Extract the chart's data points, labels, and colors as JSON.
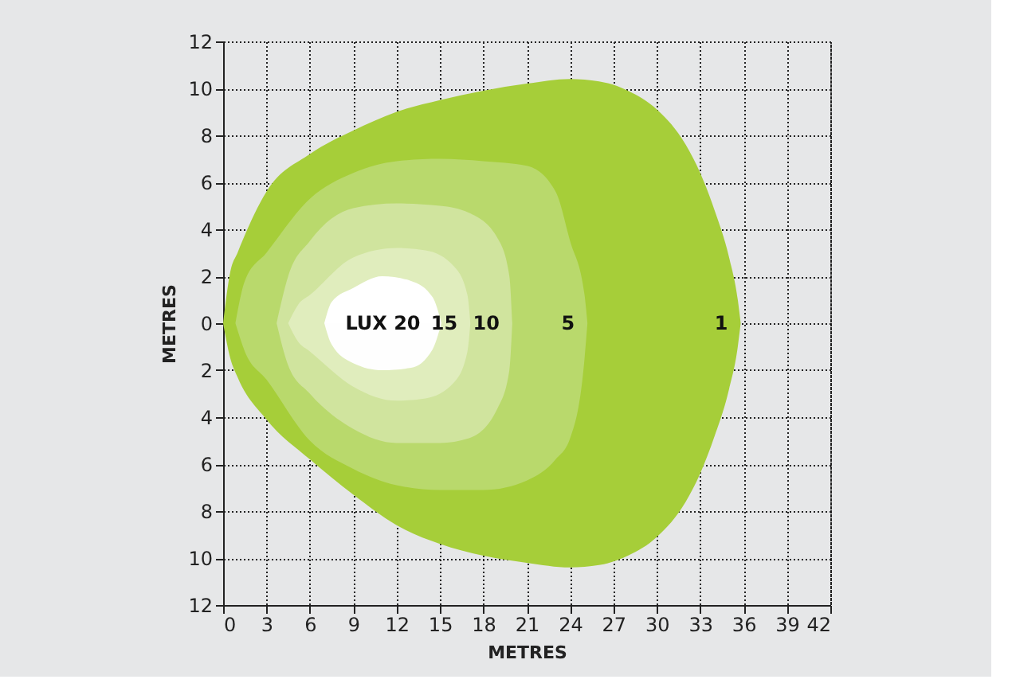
{
  "chart_data": {
    "type": "area",
    "xlabel": "METRES",
    "ylabel": "METRES",
    "series": [
      {
        "name": "1",
        "color": "#a6ce39",
        "x": [
          0,
          0.5,
          1,
          3,
          6,
          9,
          12,
          15,
          18,
          21,
          24,
          26,
          28,
          30,
          32,
          33,
          34,
          35,
          35.6,
          35.8
        ],
        "values": [
          0,
          2.2,
          3,
          5.6,
          7.2,
          8.2,
          9,
          9.5,
          9.9,
          10.2,
          10.4,
          10.3,
          9.9,
          9.1,
          7.6,
          6.4,
          4.8,
          2.8,
          1,
          0
        ]
      },
      {
        "color": "#a6ce39",
        "x": [
          0,
          0.5,
          1,
          3,
          6,
          9,
          12,
          15,
          18,
          21,
          24,
          26,
          28,
          30,
          32,
          33,
          34,
          35,
          35.6,
          35.8
        ],
        "values": [
          0,
          -1.5,
          -2.3,
          -4.1,
          -5.8,
          -7.3,
          -8.6,
          -9.4,
          -9.9,
          -10.2,
          -10.4,
          -10.3,
          -9.9,
          -9.1,
          -7.6,
          -6.4,
          -4.8,
          -2.8,
          -1,
          0
        ]
      },
      {
        "name": "5",
        "color": "#b9d96c",
        "x": [
          0.85,
          1.5,
          3,
          6,
          9,
          12,
          15,
          18,
          21,
          23,
          24,
          25,
          25.2
        ],
        "values": [
          0,
          1.8,
          3,
          5.3,
          6.4,
          6.9,
          7,
          6.9,
          6.7,
          5.6,
          3.5,
          1.2,
          0
        ]
      },
      {
        "color": "#b9d96c",
        "x": [
          0.85,
          1.5,
          3,
          6,
          9,
          12,
          15,
          18,
          21,
          23,
          24,
          25,
          25.2
        ],
        "values": [
          0,
          -1.2,
          -2.4,
          -5,
          -6.2,
          -6.9,
          -7.1,
          -7.1,
          -6.7,
          -5.8,
          -4.9,
          -1.5,
          0
        ]
      },
      {
        "name": "10",
        "color": "#d0e49e",
        "x": [
          3.7,
          4.5,
          6,
          9,
          12,
          15,
          17,
          19,
          19.8,
          20
        ],
        "values": [
          0,
          2,
          3.5,
          4.9,
          5.1,
          5,
          4.7,
          3.6,
          2,
          0
        ]
      },
      {
        "color": "#d0e49e",
        "x": [
          3.7,
          4.5,
          6,
          9,
          12,
          15,
          17,
          19,
          19.8,
          20
        ],
        "values": [
          0,
          -1.8,
          -3,
          -4.5,
          -5.1,
          -5.1,
          -4.9,
          -3.6,
          -2,
          0
        ]
      },
      {
        "name": "15",
        "color": "#e0edbd",
        "x": [
          4.5,
          5.2,
          6,
          9,
          12,
          14,
          16,
          16.9,
          17.1
        ],
        "values": [
          0,
          0.8,
          1.2,
          2.8,
          3.2,
          3.1,
          2.4,
          1.2,
          0
        ]
      },
      {
        "color": "#e0edbd",
        "x": [
          4.5,
          5.2,
          6,
          9,
          12,
          14,
          16,
          16.9,
          17.1
        ],
        "values": [
          0,
          -0.8,
          -1.2,
          -2.7,
          -3.3,
          -3.2,
          -2.5,
          -1.2,
          0
        ]
      },
      {
        "name": "LUX 20",
        "color": "#ffffff",
        "x": [
          7,
          7.5,
          9,
          11,
          13,
          14.5,
          15.1
        ],
        "values": [
          0,
          0.9,
          1.5,
          2,
          1.8,
          1.1,
          0
        ]
      },
      {
        "color": "#fefefe",
        "x": [
          7,
          7.5,
          9,
          11,
          13,
          14.5,
          15.1
        ],
        "values": [
          0,
          -0.9,
          -1.7,
          -2,
          -1.9,
          -1.1,
          0
        ]
      }
    ],
    "xlim": [
      0,
      42
    ],
    "xticks": [
      0,
      3,
      6,
      9,
      12,
      15,
      18,
      21,
      24,
      27,
      30,
      33,
      36,
      39,
      42
    ],
    "ylim": [
      -12,
      12
    ],
    "yticks": [
      {
        "value": -12,
        "label": "12"
      },
      {
        "value": -10,
        "label": "10"
      },
      {
        "value": -8,
        "label": "8"
      },
      {
        "value": -6,
        "label": "6"
      },
      {
        "value": -4,
        "label": "4"
      },
      {
        "value": -2,
        "label": "2"
      },
      0,
      2,
      4,
      6,
      8,
      10,
      12
    ],
    "grid": true
  }
}
